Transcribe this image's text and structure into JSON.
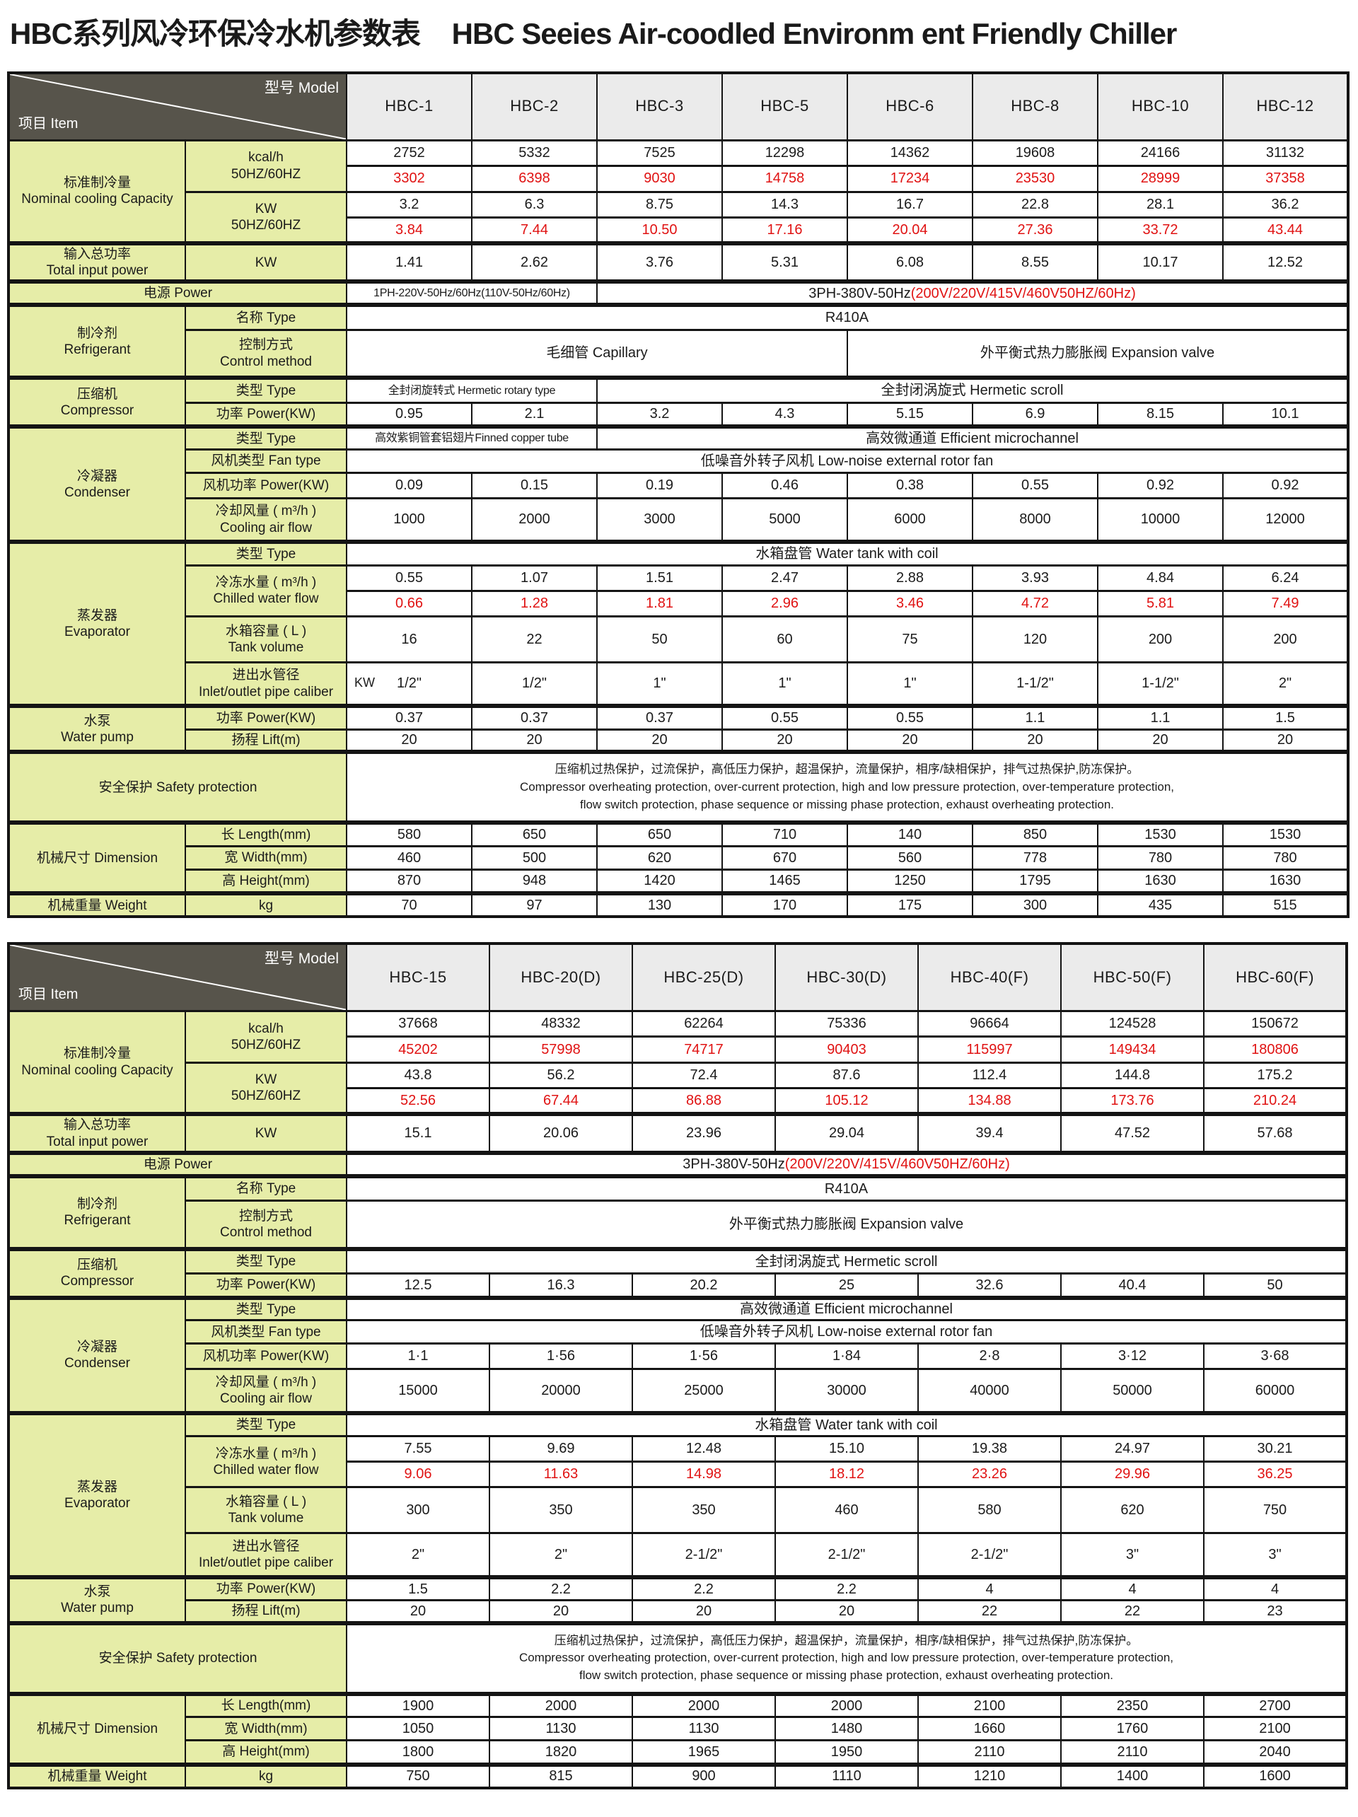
{
  "title": {
    "zh": "HBC系列风冷环保冷水机参数表",
    "en": "HBC Seeies Air-coodled Environm ent Friendly Chiller"
  },
  "colors": {
    "label_bg": "#e6eda8",
    "header_bg": "#ebebeb",
    "diag_bg": "#57544b",
    "red": "#e01212",
    "border": "#141414"
  },
  "header": {
    "model_label": "型号  Model",
    "item_label": "项目  Item"
  },
  "safety": {
    "zh": "压缩机过热保护，过流保护，高低压力保护，超温保护，流量保护，相序/缺相保护，排气过热保护,防冻保护。",
    "en1": "Compressor overheating protection, over-current protection, high and low pressure protection, over-temperature protection,",
    "en2": "flow switch protection, phase sequence or missing phase protection, exhaust overheating protection."
  },
  "tables": [
    {
      "id": "table-1",
      "models": [
        "HBC-1",
        "HBC-2",
        "HBC-3",
        "HBC-5",
        "HBC-6",
        "HBC-8",
        "HBC-10",
        "HBC-12"
      ],
      "data_cols": 8,
      "rows": [
        {
          "h": 36,
          "cells": [
            {
              "t": "标准制冷量\nNominal cooling Capacity",
              "k": "l1",
              "r": 4
            },
            {
              "t": "kcal/h\n50HZ/60HZ",
              "k": "l2",
              "r": 2
            },
            "2752",
            "5332",
            "7525",
            "12298",
            "14362",
            "19608",
            "24166",
            "31132"
          ]
        },
        {
          "h": 37,
          "red": true,
          "cells": [
            "3302",
            "6398",
            "9030",
            "14758",
            "17234",
            "23530",
            "28999",
            "37358"
          ]
        },
        {
          "h": 36,
          "cells": [
            {
              "t": "KW\n50HZ/60HZ",
              "k": "l2",
              "r": 2
            },
            "3.2",
            "6.3",
            "8.75",
            "14.3",
            "16.7",
            "22.8",
            "28.1",
            "36.2"
          ]
        },
        {
          "h": 37,
          "red": true,
          "cells": [
            "3.84",
            "7.44",
            "10.50",
            "17.16",
            "20.04",
            "27.36",
            "33.72",
            "43.44"
          ]
        },
        {
          "h": 52,
          "sep": true,
          "cells": [
            {
              "t": "输入总功率\nTotal input power",
              "k": "l1"
            },
            {
              "t": "KW",
              "k": "l2"
            },
            "1.41",
            "2.62",
            "3.76",
            "5.31",
            "6.08",
            "8.55",
            "10.17",
            "12.52"
          ]
        },
        {
          "h": 33,
          "sep": true,
          "cells": [
            {
              "t": "电源  Power",
              "k": "lw",
              "c": 2
            },
            {
              "t": "1PH-220V-50Hz/60Hz(110V-50Hz/60Hz)",
              "k": "m",
              "small": true,
              "c": 2
            },
            {
              "t": "3PH-380V-50Hz",
              "red2": "(200V/220V/415V/460V50HZ/60Hz)",
              "k": "m",
              "c": 6
            }
          ]
        },
        {
          "h": 35,
          "sep": true,
          "cells": [
            {
              "t": "制冷剂\nRefrigerant",
              "k": "l1",
              "r": 2
            },
            {
              "t": "名称  Type",
              "k": "l2"
            },
            {
              "t": "R410A",
              "k": "m",
              "c": 8
            }
          ]
        },
        {
          "h": 68,
          "cells": [
            {
              "t": "控制方式\nControl method",
              "k": "l2"
            },
            {
              "t": "毛细管  Capillary",
              "k": "m",
              "c": 4
            },
            {
              "t": "外平衡式热力膨胀阀  Expansion valve",
              "k": "m",
              "c": 4
            }
          ]
        },
        {
          "h": 35,
          "sep": true,
          "cells": [
            {
              "t": "压缩机\nCompressor",
              "k": "l1",
              "r": 2
            },
            {
              "t": "类型  Type",
              "k": "l2"
            },
            {
              "t": "全封闭旋转式 Hermetic rotary type",
              "k": "m",
              "small": true,
              "c": 2
            },
            {
              "t": "全封闭涡旋式 Hermetic scroll",
              "k": "m",
              "c": 6
            }
          ]
        },
        {
          "h": 34,
          "cells": [
            {
              "t": "功率  Power(KW)",
              "k": "l2"
            },
            "0.95",
            "2.1",
            "3.2",
            "4.3",
            "5.15",
            "6.9",
            "8.15",
            "10.1"
          ]
        },
        {
          "h": 32,
          "sep": true,
          "cells": [
            {
              "t": "冷凝器\nCondenser",
              "k": "l1",
              "r": 4
            },
            {
              "t": "类型  Type",
              "k": "l2"
            },
            {
              "t": "高效紫铜管套铝翅片Finned copper tube",
              "k": "m",
              "small": true,
              "c": 2
            },
            {
              "t": "高效微通道 Efficient microchannel",
              "k": "m",
              "c": 6
            }
          ]
        },
        {
          "h": 33,
          "cells": [
            {
              "t": "风机类型 Fan type",
              "k": "l2"
            },
            {
              "t": "低噪音外转子风机  Low-noise external rotor fan",
              "k": "m",
              "c": 8
            }
          ]
        },
        {
          "h": 36,
          "cells": [
            {
              "t": "风机功率 Power(KW)",
              "k": "l2"
            },
            "0.09",
            "0.15",
            "0.19",
            "0.46",
            "0.38",
            "0.55",
            "0.92",
            "0.92"
          ]
        },
        {
          "h": 62,
          "cells": [
            {
              "t": "冷却风量 ( m³/h )\nCooling air flow",
              "k": "l2"
            },
            "1000",
            "2000",
            "3000",
            "5000",
            "6000",
            "8000",
            "10000",
            "12000"
          ]
        },
        {
          "h": 33,
          "sep": true,
          "cells": [
            {
              "t": "蒸发器\nEvaporator",
              "k": "l1",
              "r": 5
            },
            {
              "t": "类型  Type",
              "k": "l2"
            },
            {
              "t": "水箱盘管 Water tank with coil",
              "k": "m",
              "c": 8
            }
          ]
        },
        {
          "h": 36,
          "cells": [
            {
              "t": "冷冻水量 ( m³/h )\nChilled water flow",
              "k": "l2",
              "r": 2
            },
            "0.55",
            "1.07",
            "1.51",
            "2.47",
            "2.88",
            "3.93",
            "4.84",
            "6.24"
          ]
        },
        {
          "h": 36,
          "red": true,
          "cells": [
            "0.66",
            "1.28",
            "1.81",
            "2.96",
            "3.46",
            "4.72",
            "5.81",
            "7.49"
          ]
        },
        {
          "h": 65,
          "cells": [
            {
              "t": "水箱容量 ( L )\nTank volume",
              "k": "l2"
            },
            "16",
            "22",
            "50",
            "60",
            "75",
            "120",
            "200",
            "200"
          ]
        },
        {
          "h": 62,
          "cells": [
            {
              "t": "进出水管径\nInlet/outlet pipe caliber",
              "k": "l2"
            },
            {
              "t": "1/2\"",
              "stray": "KW"
            },
            "1/2\"",
            "1\"",
            "1\"",
            "1\"",
            "1-1/2\"",
            "1-1/2\"",
            "2\""
          ]
        },
        {
          "h": 33,
          "sep": true,
          "cells": [
            {
              "t": "水泵\nWater pump",
              "k": "l1",
              "r": 2
            },
            {
              "t": "功率  Power(KW)",
              "k": "l2"
            },
            "0.37",
            "0.37",
            "0.37",
            "0.55",
            "0.55",
            "1.1",
            "1.1",
            "1.5"
          ]
        },
        {
          "h": 32,
          "cells": [
            {
              "t": "扬程  Lift(m)",
              "k": "l2"
            },
            "20",
            "20",
            "20",
            "20",
            "20",
            "20",
            "20",
            "20"
          ]
        },
        {
          "h": 100,
          "sep": true,
          "cells": [
            {
              "t": "安全保护  Safety protection",
              "k": "lw",
              "c": 2
            },
            {
              "k": "safety",
              "c": 8
            }
          ]
        },
        {
          "h": 33,
          "sep": true,
          "cells": [
            {
              "t": "机械尺寸  Dimension",
              "k": "l1",
              "r": 3
            },
            {
              "t": "长  Length(mm)",
              "k": "l2"
            },
            "580",
            "650",
            "650",
            "710",
            "140",
            "850",
            "1530",
            "1530"
          ]
        },
        {
          "h": 33,
          "cells": [
            {
              "t": "宽  Width(mm)",
              "k": "l2"
            },
            "460",
            "500",
            "620",
            "670",
            "560",
            "778",
            "780",
            "780"
          ]
        },
        {
          "h": 34,
          "cells": [
            {
              "t": "高  Height(mm)",
              "k": "l2"
            },
            "870",
            "948",
            "1420",
            "1465",
            "1250",
            "1795",
            "1630",
            "1630"
          ]
        },
        {
          "h": 33,
          "sep": true,
          "cells": [
            {
              "t": "机械重量  Weight",
              "k": "l1"
            },
            {
              "t": "kg",
              "k": "l2"
            },
            "70",
            "97",
            "130",
            "170",
            "175",
            "300",
            "435",
            "515"
          ]
        }
      ]
    },
    {
      "id": "table-2",
      "models": [
        "HBC-15",
        "HBC-20(D)",
        "HBC-25(D)",
        "HBC-30(D)",
        "HBC-40(F)",
        "HBC-50(F)",
        "HBC-60(F)"
      ],
      "data_cols": 7,
      "rows": [
        {
          "h": 36,
          "cells": [
            {
              "t": "标准制冷量\nNominal cooling Capacity",
              "k": "l1",
              "r": 4
            },
            {
              "t": "kcal/h\n50HZ/60HZ",
              "k": "l2",
              "r": 2
            },
            "37668",
            "48332",
            "62264",
            "75336",
            "96664",
            "124528",
            "150672"
          ]
        },
        {
          "h": 37,
          "red": true,
          "cells": [
            "45202",
            "57998",
            "74717",
            "90403",
            "115997",
            "149434",
            "180806"
          ]
        },
        {
          "h": 36,
          "cells": [
            {
              "t": "KW\n50HZ/60HZ",
              "k": "l2",
              "r": 2
            },
            "43.8",
            "56.2",
            "72.4",
            "87.6",
            "112.4",
            "144.8",
            "175.2"
          ]
        },
        {
          "h": 37,
          "red": true,
          "cells": [
            "52.56",
            "67.44",
            "86.88",
            "105.12",
            "134.88",
            "173.76",
            "210.24"
          ]
        },
        {
          "h": 52,
          "sep": true,
          "cells": [
            {
              "t": "输入总功率\nTotal input power",
              "k": "l1"
            },
            {
              "t": "KW",
              "k": "l2"
            },
            "15.1",
            "20.06",
            "23.96",
            "29.04",
            "39.4",
            "47.52",
            "57.68"
          ]
        },
        {
          "h": 33,
          "sep": true,
          "cells": [
            {
              "t": "电源  Power",
              "k": "lw",
              "c": 2
            },
            {
              "t": "3PH-380V-50Hz",
              "red2": "(200V/220V/415V/460V50HZ/60Hz)",
              "k": "m",
              "c": 7
            }
          ]
        },
        {
          "h": 35,
          "sep": true,
          "cells": [
            {
              "t": "制冷剂\nRefrigerant",
              "k": "l1",
              "r": 2
            },
            {
              "t": "名称  Type",
              "k": "l2"
            },
            {
              "t": "R410A",
              "k": "m",
              "c": 7
            }
          ]
        },
        {
          "h": 68,
          "cells": [
            {
              "t": "控制方式\nControl method",
              "k": "l2"
            },
            {
              "t": "外平衡式热力膨胀阀  Expansion valve",
              "k": "m",
              "c": 7
            }
          ]
        },
        {
          "h": 35,
          "sep": true,
          "cells": [
            {
              "t": "压缩机\nCompressor",
              "k": "l1",
              "r": 2
            },
            {
              "t": "类型  Type",
              "k": "l2"
            },
            {
              "t": "全封闭涡旋式 Hermetic scroll",
              "k": "m",
              "c": 7
            }
          ]
        },
        {
          "h": 34,
          "cells": [
            {
              "t": "功率  Power(KW)",
              "k": "l2"
            },
            "12.5",
            "16.3",
            "20.2",
            "25",
            "32.6",
            "40.4",
            "50"
          ]
        },
        {
          "h": 32,
          "sep": true,
          "cells": [
            {
              "t": "冷凝器\nCondenser",
              "k": "l1",
              "r": 4
            },
            {
              "t": "类型  Type",
              "k": "l2"
            },
            {
              "t": "高效微通道 Efficient microchannel",
              "k": "m",
              "c": 7
            }
          ]
        },
        {
          "h": 33,
          "cells": [
            {
              "t": "风机类型 Fan type",
              "k": "l2"
            },
            {
              "t": "低噪音外转子风机  Low-noise external rotor fan",
              "k": "m",
              "c": 7
            }
          ]
        },
        {
          "h": 36,
          "cells": [
            {
              "t": "风机功率 Power(KW)",
              "k": "l2"
            },
            "1·1",
            "1·56",
            "1·56",
            "1·84",
            "2·8",
            "3·12",
            "3·68"
          ]
        },
        {
          "h": 62,
          "cells": [
            {
              "t": "冷却风量 ( m³/h )\nCooling air flow",
              "k": "l2"
            },
            "15000",
            "20000",
            "25000",
            "30000",
            "40000",
            "50000",
            "60000"
          ]
        },
        {
          "h": 33,
          "sep": true,
          "cells": [
            {
              "t": "蒸发器\nEvaporator",
              "k": "l1",
              "r": 5
            },
            {
              "t": "类型  Type",
              "k": "l2"
            },
            {
              "t": "水箱盘管 Water tank with coil",
              "k": "m",
              "c": 7
            }
          ]
        },
        {
          "h": 36,
          "cells": [
            {
              "t": "冷冻水量 ( m³/h )\nChilled water flow",
              "k": "l2",
              "r": 2
            },
            "7.55",
            "9.69",
            "12.48",
            "15.10",
            "19.38",
            "24.97",
            "30.21"
          ]
        },
        {
          "h": 36,
          "red": true,
          "cells": [
            "9.06",
            "11.63",
            "14.98",
            "18.12",
            "23.26",
            "29.96",
            "36.25"
          ]
        },
        {
          "h": 65,
          "cells": [
            {
              "t": "水箱容量 ( L )\nTank volume",
              "k": "l2"
            },
            "300",
            "350",
            "350",
            "460",
            "580",
            "620",
            "750"
          ]
        },
        {
          "h": 62,
          "cells": [
            {
              "t": "进出水管径\nInlet/outlet pipe caliber",
              "k": "l2"
            },
            "2\"",
            "2\"",
            "2-1/2\"",
            "2-1/2\"",
            "2-1/2\"",
            "3\"",
            "3\""
          ]
        },
        {
          "h": 33,
          "sep": true,
          "cells": [
            {
              "t": "水泵\nWater pump",
              "k": "l1",
              "r": 2
            },
            {
              "t": "功率  Power(KW)",
              "k": "l2"
            },
            "1.5",
            "2.2",
            "2.2",
            "2.2",
            "4",
            "4",
            "4"
          ]
        },
        {
          "h": 32,
          "cells": [
            {
              "t": "扬程  Lift(m)",
              "k": "l2"
            },
            "20",
            "20",
            "20",
            "20",
            "22",
            "22",
            "23"
          ]
        },
        {
          "h": 100,
          "sep": true,
          "cells": [
            {
              "t": "安全保护  Safety protection",
              "k": "lw",
              "c": 2
            },
            {
              "k": "safety",
              "c": 7
            }
          ]
        },
        {
          "h": 33,
          "sep": true,
          "cells": [
            {
              "t": "机械尺寸  Dimension",
              "k": "l1",
              "r": 3
            },
            {
              "t": "长  Length(mm)",
              "k": "l2"
            },
            "1900",
            "2000",
            "2000",
            "2000",
            "2100",
            "2350",
            "2700"
          ]
        },
        {
          "h": 33,
          "cells": [
            {
              "t": "宽  Width(mm)",
              "k": "l2"
            },
            "1050",
            "1130",
            "1130",
            "1480",
            "1660",
            "1760",
            "2100"
          ]
        },
        {
          "h": 34,
          "cells": [
            {
              "t": "高  Height(mm)",
              "k": "l2"
            },
            "1800",
            "1820",
            "1965",
            "1950",
            "2110",
            "2110",
            "2040"
          ]
        },
        {
          "h": 33,
          "sep": true,
          "cells": [
            {
              "t": "机械重量  Weight",
              "k": "l1"
            },
            {
              "t": "kg",
              "k": "l2"
            },
            "750",
            "815",
            "900",
            "1110",
            "1210",
            "1400",
            "1600"
          ]
        }
      ]
    }
  ]
}
